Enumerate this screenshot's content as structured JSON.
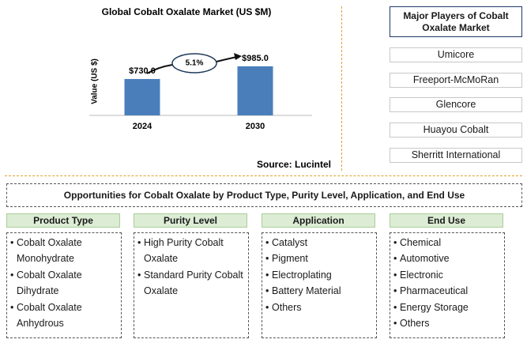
{
  "chart_data": {
    "type": "bar",
    "title": "Global Cobalt Oxalate Market (US $M)",
    "y_label": "Value (US $)",
    "categories": [
      "2024",
      "2030"
    ],
    "values": [
      730,
      985
    ],
    "value_labels": [
      "$730.0",
      "$985.0"
    ],
    "color": "#4a7ebb",
    "ylim": [
      0,
      1300
    ],
    "annotation": "5.1%",
    "source": "Source: Lucintel"
  },
  "players": {
    "title": "Major Players of Cobalt Oxalate Market",
    "items": [
      "Umicore",
      "Freeport-McMoRan",
      "Glencore",
      "Huayou Cobalt",
      "Sherritt International"
    ]
  },
  "opportunities": {
    "title": "Opportunities for Cobalt Oxalate by Product Type, Purity Level, Application, and End Use",
    "columns": [
      {
        "header": "Product Type",
        "items": [
          "Cobalt Oxalate Monohydrate",
          "Cobalt Oxalate Dihydrate",
          "Cobalt Oxalate Anhydrous"
        ]
      },
      {
        "header": "Purity Level",
        "items": [
          "High Purity Cobalt Oxalate",
          "Standard Purity Cobalt Oxalate"
        ]
      },
      {
        "header": "Application",
        "items": [
          "Catalyst",
          "Pigment",
          "Electroplating",
          "Battery Material",
          "Others"
        ]
      },
      {
        "header": "End Use",
        "items": [
          "Chemical",
          "Automotive",
          "Electronic",
          "Pharmaceutical",
          "Energy Storage",
          "Others"
        ]
      }
    ]
  }
}
